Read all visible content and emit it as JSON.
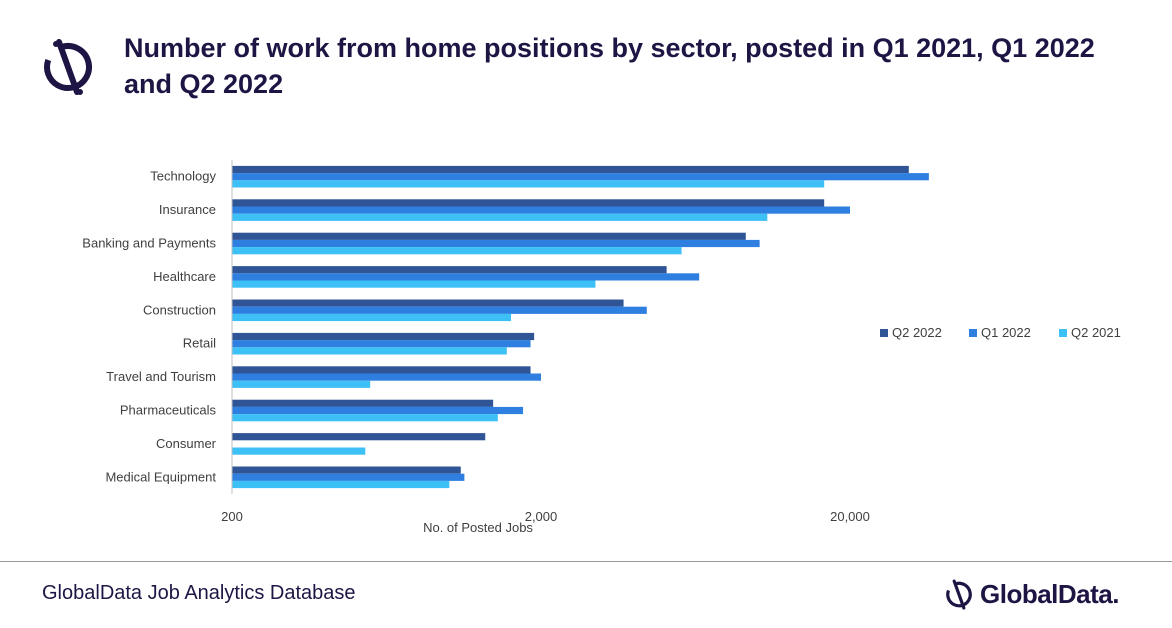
{
  "title": "Number of work from home positions by sector, posted in Q1 2021, Q1 2022 and Q2 2022",
  "footer": {
    "source": "GlobalData Job Analytics Database",
    "brand": "GlobalData."
  },
  "colors": {
    "title": "#1f1545",
    "q2_2022": "#2f5597",
    "q1_2022": "#2e7fe0",
    "q2_2021": "#3cc0f5"
  },
  "chart_data": {
    "type": "bar",
    "orientation": "horizontal",
    "x_scale": "log",
    "xlim": [
      200,
      100000
    ],
    "xticks": [
      200,
      2000,
      20000
    ],
    "xtick_labels": [
      "200",
      "2,000",
      "20,000"
    ],
    "xlabel": "No. of Posted Jobs",
    "legend_position": "right",
    "categories": [
      "Technology",
      "Insurance",
      "Banking and Payments",
      "Healthcare",
      "Construction",
      "Retail",
      "Travel and Tourism",
      "Pharmaceuticals",
      "Consumer",
      "Medical Equipment"
    ],
    "series": [
      {
        "name": "Q2 2022",
        "color": "#2f5597",
        "values": [
          31000,
          16500,
          9200,
          5100,
          3700,
          1900,
          1850,
          1400,
          1320,
          1100
        ]
      },
      {
        "name": "Q1 2022",
        "color": "#2e7fe0",
        "values": [
          36000,
          20000,
          10200,
          6500,
          4400,
          1850,
          2000,
          1750,
          0,
          1130
        ]
      },
      {
        "name": "Q2 2021",
        "color": "#3cc0f5",
        "values": [
          16500,
          10800,
          5700,
          3000,
          1600,
          1550,
          560,
          1450,
          540,
          1010
        ]
      }
    ]
  }
}
